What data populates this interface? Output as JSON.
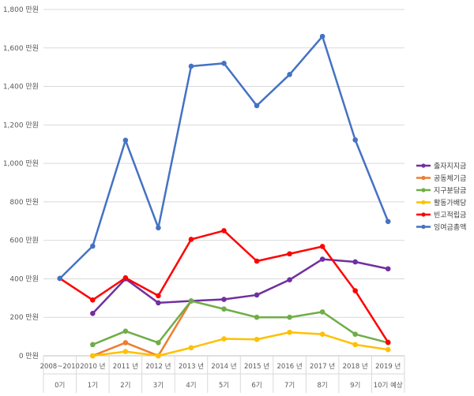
{
  "chart_data": {
    "type": "line",
    "categories": [
      "2008~2010",
      "2010 년",
      "2011 년",
      "2012 년",
      "2013 년",
      "2014 년",
      "2015 년",
      "2016 년",
      "2017 년",
      "2018 년",
      "2019 년"
    ],
    "categories_row2": [
      "0기",
      "1기",
      "2기",
      "3기",
      "4기",
      "5기",
      "6기",
      "7기",
      "8기",
      "9기",
      "10기 예상"
    ],
    "ylim": [
      0,
      1800
    ],
    "yticks": [
      0,
      200,
      400,
      600,
      800,
      1000,
      1200,
      1400,
      1600,
      1800
    ],
    "ytick_labels": [
      "0 만원",
      "200 만원",
      "400 만원",
      "600 만원",
      "800 만원",
      "1,000 만원",
      "1,200 만원",
      "1,400 만원",
      "1,600 만원",
      "1,800 만원"
    ],
    "grid": true,
    "legend_position": "right",
    "series": [
      {
        "name": "출자지지금",
        "color": "#7030a0",
        "values": [
          null,
          220,
          400,
          275,
          285,
          293,
          316,
          395,
          502,
          488,
          452
        ]
      },
      {
        "name": "공동체기금",
        "color": "#ed7d31",
        "values": [
          null,
          0,
          68,
          0,
          285,
          null,
          null,
          null,
          null,
          null,
          null
        ]
      },
      {
        "name": "지구분담금",
        "color": "#70ad47",
        "values": [
          null,
          58,
          128,
          68,
          285,
          243,
          200,
          200,
          228,
          112,
          68
        ]
      },
      {
        "name": "활동가배당",
        "color": "#ffc000",
        "values": [
          null,
          0,
          22,
          0,
          42,
          88,
          85,
          122,
          112,
          58,
          32
        ]
      },
      {
        "name": "빈고적립금",
        "color": "#ff0000",
        "values": [
          402,
          290,
          405,
          312,
          605,
          650,
          492,
          530,
          568,
          338,
          70
        ]
      },
      {
        "name": "잉여금총액",
        "color": "#4472c4",
        "values": [
          402,
          570,
          1120,
          665,
          1505,
          1520,
          1300,
          1462,
          1660,
          1122,
          698
        ]
      }
    ]
  }
}
